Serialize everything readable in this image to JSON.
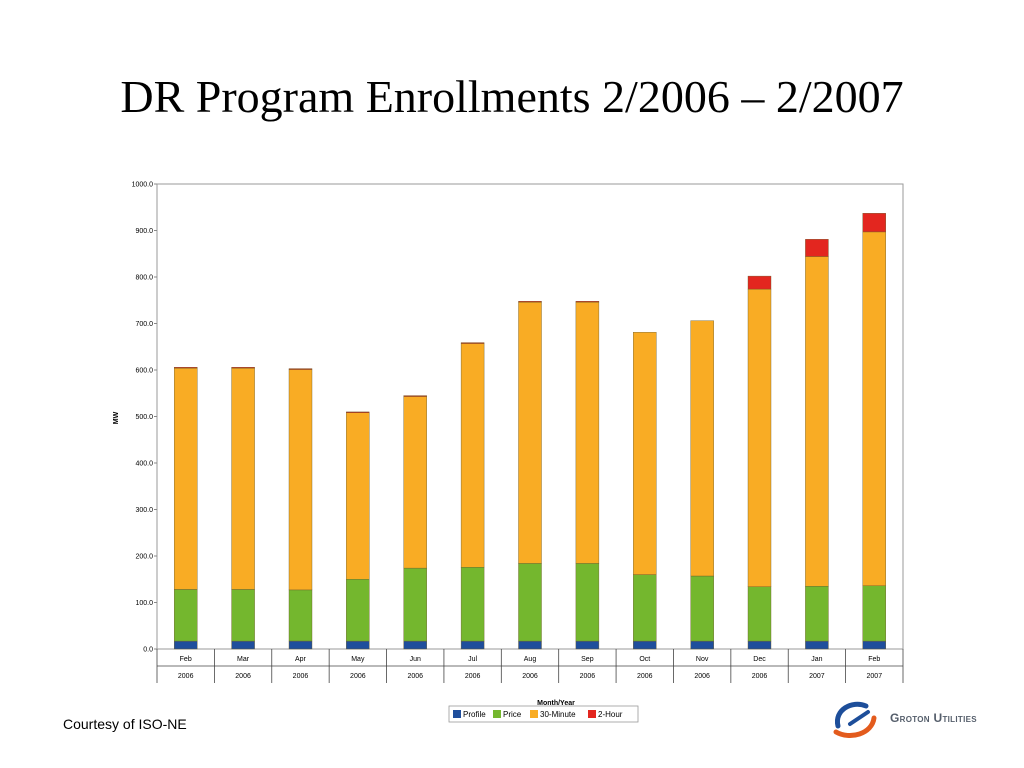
{
  "slide": {
    "title": "DR Program Enrollments 2/2006 – 2/2007",
    "courtesy": "Courtesy of ISO-NE",
    "logo_text": "Groton Utilities"
  },
  "chart_data": {
    "type": "bar",
    "stacked": true,
    "xlabel": "Month/Year",
    "ylabel": "MW",
    "ylim": [
      0,
      1000
    ],
    "yticks": [
      "0.0",
      "100.0",
      "200.0",
      "300.0",
      "400.0",
      "500.0",
      "600.0",
      "700.0",
      "800.0",
      "900.0",
      "1000.0"
    ],
    "categories": [
      {
        "month": "Feb",
        "year": "2006"
      },
      {
        "month": "Mar",
        "year": "2006"
      },
      {
        "month": "Apr",
        "year": "2006"
      },
      {
        "month": "May",
        "year": "2006"
      },
      {
        "month": "Jun",
        "year": "2006"
      },
      {
        "month": "Jul",
        "year": "2006"
      },
      {
        "month": "Aug",
        "year": "2006"
      },
      {
        "month": "Sep",
        "year": "2006"
      },
      {
        "month": "Oct",
        "year": "2006"
      },
      {
        "month": "Nov",
        "year": "2006"
      },
      {
        "month": "Dec",
        "year": "2006"
      },
      {
        "month": "Jan",
        "year": "2007"
      },
      {
        "month": "Feb",
        "year": "2007"
      }
    ],
    "series": [
      {
        "name": "Profile",
        "color": "#1f4e9c",
        "values": [
          17,
          17,
          17,
          17,
          17,
          17,
          17,
          17,
          17,
          17,
          17,
          17,
          17
        ]
      },
      {
        "name": "Price",
        "color": "#74b72e",
        "values": [
          111,
          111,
          110,
          133,
          157,
          159,
          167,
          167,
          143,
          140,
          117,
          118,
          119
        ]
      },
      {
        "name": "30-Minute",
        "color": "#f9ac24",
        "values": [
          476,
          476,
          474,
          358,
          369,
          481,
          562,
          562,
          521,
          549,
          640,
          709,
          761
        ]
      },
      {
        "name": "2-Hour",
        "color": "#e3261f",
        "values": [
          2,
          2,
          2,
          2,
          2,
          2,
          2,
          2,
          0,
          0,
          28,
          37,
          40
        ]
      }
    ],
    "legend": "bottom",
    "grid": false
  }
}
